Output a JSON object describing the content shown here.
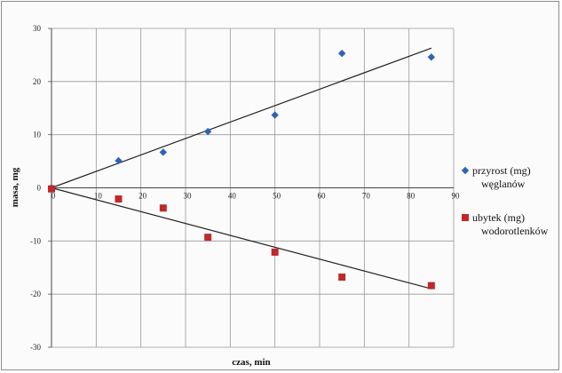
{
  "chart_data": {
    "type": "scatter",
    "xlabel": "czas, min",
    "ylabel": "masa, mg",
    "xlim": [
      0,
      90
    ],
    "ylim": [
      -30,
      30
    ],
    "x_ticks": [
      "0",
      "10",
      "20",
      "30",
      "40",
      "50",
      "60",
      "70",
      "80",
      "90"
    ],
    "y_ticks": [
      "30",
      "20",
      "10",
      "0",
      "-10",
      "-20",
      "-30"
    ],
    "grid": true,
    "legend_position": "right",
    "series": [
      {
        "name": "przyrost (mg) węglanów",
        "legend_lines": [
          "przyrost (mg)",
          "węglanów"
        ],
        "color": "#2e64b4",
        "marker": "diamond",
        "points": [
          [
            0,
            0
          ],
          [
            15,
            5.1
          ],
          [
            25,
            6.7
          ],
          [
            35,
            10.6
          ],
          [
            50,
            13.7
          ],
          [
            65,
            25.3
          ],
          [
            85,
            24.6
          ]
        ],
        "trendline": [
          [
            0,
            0
          ],
          [
            85,
            26.3
          ]
        ]
      },
      {
        "name": "ubytek (mg) wodorotlenków",
        "legend_lines": [
          "ubytek (mg)",
          "wodorotlenków"
        ],
        "color": "#c0282a",
        "marker": "square",
        "points": [
          [
            0,
            -0.2
          ],
          [
            15,
            -2.1
          ],
          [
            25,
            -3.8
          ],
          [
            35,
            -9.3
          ],
          [
            50,
            -12.1
          ],
          [
            65,
            -16.8
          ],
          [
            85,
            -18.4
          ]
        ],
        "trendline": [
          [
            0,
            0
          ],
          [
            85,
            -19.0
          ]
        ]
      }
    ]
  }
}
